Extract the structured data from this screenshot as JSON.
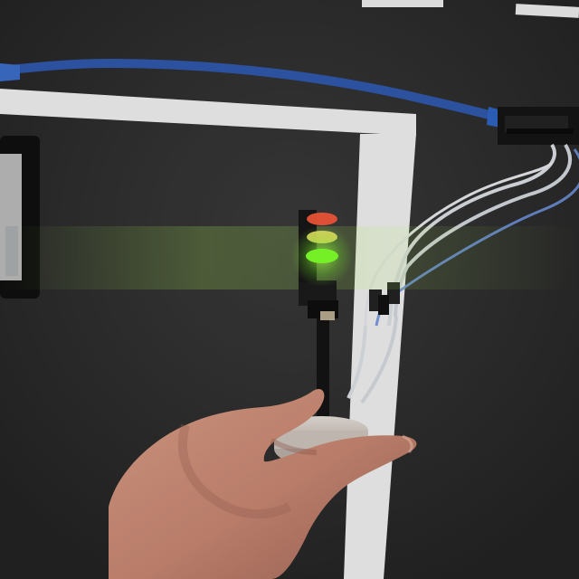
{
  "scene": {
    "description_alt": "",
    "colors": {
      "table_surface": "#2b2b2b",
      "table_surface_light": "#3a3a3a",
      "tape_lines": "#e9e9e9",
      "usb_cable": "#2f57a8",
      "board": "#1a1a1a",
      "led_red": "#ff5a3a",
      "led_yellow": "#f4e46a",
      "led_green": "#7dff2a",
      "green_glow": "#b9ff59",
      "skin": "#c88b73",
      "skin_shadow": "#9e6455",
      "base": "#cfc7bf",
      "wires": "#d8dbe0"
    },
    "traffic_light": {
      "active_led": "green"
    }
  }
}
